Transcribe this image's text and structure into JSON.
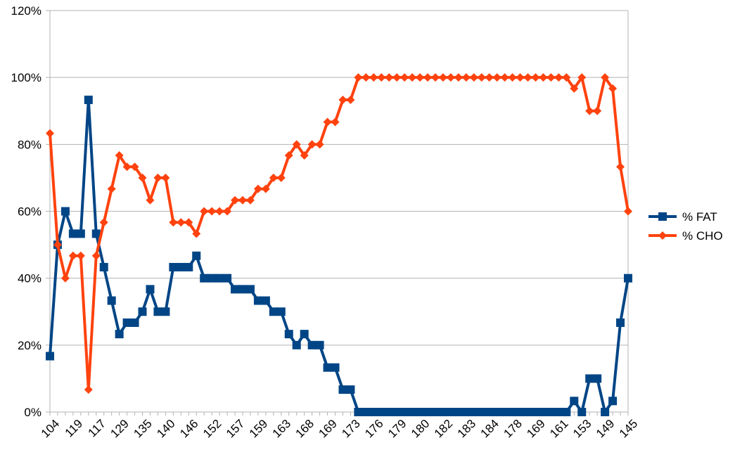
{
  "chart_data": {
    "type": "line",
    "title": "",
    "xlabel": "",
    "ylabel": "",
    "ylim": [
      0,
      1.2
    ],
    "y_ticks": [
      "0%",
      "20%",
      "40%",
      "60%",
      "80%",
      "100%",
      "120%"
    ],
    "y_tick_values": [
      0,
      0.2,
      0.4,
      0.6,
      0.8,
      1.0,
      1.2
    ],
    "grid": true,
    "legend_position": "right",
    "x_tick_labels": [
      "104",
      "119",
      "117",
      "129",
      "135",
      "140",
      "146",
      "152",
      "157",
      "159",
      "163",
      "168",
      "169",
      "173",
      "176",
      "179",
      "180",
      "182",
      "183",
      "184",
      "178",
      "169",
      "161",
      "153",
      "149",
      "145"
    ],
    "point_count": 76,
    "series": [
      {
        "name": "% FAT",
        "color": "#004586",
        "marker": "square",
        "values": [
          0.167,
          0.5,
          0.6,
          0.533,
          0.533,
          0.933,
          0.533,
          0.433,
          0.333,
          0.233,
          0.267,
          0.267,
          0.3,
          0.367,
          0.3,
          0.3,
          0.433,
          0.433,
          0.433,
          0.467,
          0.4,
          0.4,
          0.4,
          0.4,
          0.367,
          0.367,
          0.367,
          0.333,
          0.333,
          0.3,
          0.3,
          0.233,
          0.2,
          0.233,
          0.2,
          0.2,
          0.133,
          0.133,
          0.067,
          0.067,
          0,
          0,
          0,
          0,
          0,
          0,
          0,
          0,
          0,
          0,
          0,
          0,
          0,
          0,
          0,
          0,
          0,
          0,
          0,
          0,
          0,
          0,
          0,
          0,
          0,
          0,
          0,
          0,
          0.033,
          0,
          0.1,
          0.1,
          0,
          0.033,
          0.267,
          0.4
        ]
      },
      {
        "name": "% CHO",
        "color": "#ff420e",
        "marker": "diamond",
        "values": [
          0.833,
          0.5,
          0.4,
          0.467,
          0.467,
          0.067,
          0.467,
          0.567,
          0.667,
          0.767,
          0.733,
          0.733,
          0.7,
          0.633,
          0.7,
          0.7,
          0.567,
          0.567,
          0.567,
          0.533,
          0.6,
          0.6,
          0.6,
          0.6,
          0.633,
          0.633,
          0.633,
          0.667,
          0.667,
          0.7,
          0.7,
          0.767,
          0.8,
          0.767,
          0.8,
          0.8,
          0.867,
          0.867,
          0.933,
          0.933,
          1,
          1,
          1,
          1,
          1,
          1,
          1,
          1,
          1,
          1,
          1,
          1,
          1,
          1,
          1,
          1,
          1,
          1,
          1,
          1,
          1,
          1,
          1,
          1,
          1,
          1,
          1,
          1,
          0.967,
          1,
          0.9,
          0.9,
          1,
          0.967,
          0.733,
          0.6
        ]
      }
    ]
  }
}
